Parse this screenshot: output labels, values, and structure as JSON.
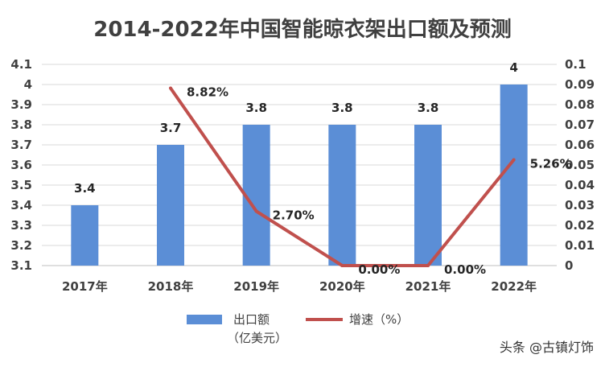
{
  "chart_data": {
    "type": "bar",
    "title": "2014-2022年中国智能晾衣架出口额及预测",
    "categories": [
      "2017年",
      "2018年",
      "2019年",
      "2020年",
      "2021年",
      "2022年"
    ],
    "series": [
      {
        "name": "出口额（亿美元）",
        "type": "bar",
        "axis": "left",
        "color": "#5B8ED6",
        "values": [
          3.4,
          3.7,
          3.8,
          3.8,
          3.8,
          4
        ],
        "labels": [
          "3.4",
          "3.7",
          "3.8",
          "3.8",
          "3.8",
          "4"
        ]
      },
      {
        "name": "增速（%）",
        "type": "line",
        "axis": "right",
        "color": "#C0504D",
        "x": [
          "2018年",
          "2019年",
          "2020年",
          "2021年",
          "2022年"
        ],
        "values": [
          0.0882,
          0.027,
          0,
          0,
          0.0526
        ],
        "labels": [
          "8.82%",
          "2.70%",
          "0.00%",
          "0.00%",
          "5.26%"
        ]
      }
    ],
    "y_left": {
      "ylim": [
        3.1,
        4.1
      ],
      "ticks": [
        "3.1",
        "3.2",
        "3.3",
        "3.4",
        "3.5",
        "3.6",
        "3.7",
        "3.8",
        "3.9",
        "4",
        "4.1"
      ]
    },
    "y_right": {
      "ylim": [
        0,
        0.1
      ],
      "ticks": [
        "0",
        "0.01",
        "0.02",
        "0.03",
        "0.04",
        "0.05",
        "0.06",
        "0.07",
        "0.08",
        "0.09",
        "0.1"
      ]
    },
    "grid": true,
    "legend_position": "bottom",
    "legend": {
      "bar_label_line1": "出口额",
      "bar_label_line2": "（亿美元）",
      "line_label": "增速（%）"
    }
  },
  "watermark": "头条 @古镇灯饰",
  "colors": {
    "grid": "#D9D9D9",
    "axis": "#BFBFBF"
  }
}
